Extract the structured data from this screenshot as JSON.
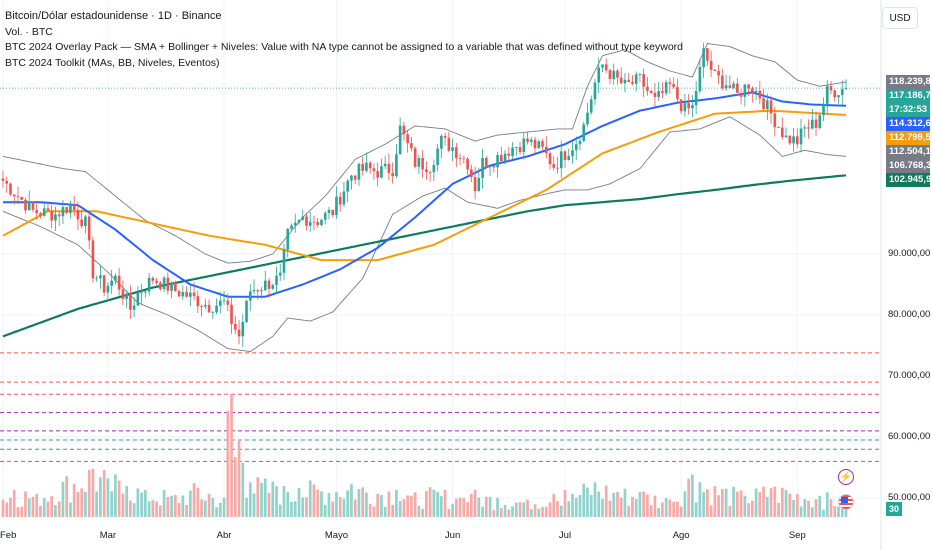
{
  "header": {
    "title": "Bitcoin/Dólar estadounidense · 1D · Binance",
    "volume_label": "Vol. · BTC",
    "indicator_overlay": "BTC 2024 Overlay Pack — SMA + Bollinger + Niveles: Value with NA type cannot be assigned to a variable that was defined without type keyword",
    "indicator_toolkit": "BTC 2024 Toolkit (MAs, BB, Niveles, Eventos)",
    "currency_button": "USD"
  },
  "price_badges": [
    {
      "id": "bb-upper",
      "text": "118.239,82",
      "value": 118239.82,
      "color": "#787b86"
    },
    {
      "id": "last-price",
      "text": "117.186,76",
      "value": 117186.76,
      "color": "#26a69a"
    },
    {
      "id": "countdown",
      "text": "17:32:53",
      "value": 117186.76,
      "color": "#26a69a"
    },
    {
      "id": "sma50",
      "text": "114.312,64",
      "value": 114312.64,
      "color": "#2962ff"
    },
    {
      "id": "sma100",
      "text": "112.799,50",
      "value": 112799.5,
      "color": "#f59d0b"
    },
    {
      "id": "bb-basis",
      "text": "112.504,10",
      "value": 112504.1,
      "color": "#787b86"
    },
    {
      "id": "bb-lower",
      "text": "106.768,39",
      "value": 106768.39,
      "color": "#787b86"
    },
    {
      "id": "sma200",
      "text": "102.945,98",
      "value": 102945.98,
      "color": "#0f7a5c"
    }
  ],
  "volume_badge": "30",
  "icons": {
    "flash": "flash-icon",
    "flag": "us-flag-icon"
  },
  "chart_data": {
    "type": "candlestick",
    "y_axis": {
      "ticks": [
        {
          "value": 90000,
          "label": "90.000,00"
        },
        {
          "value": 80000,
          "label": "80.000,00"
        },
        {
          "value": 70000,
          "label": "70.000,00"
        },
        {
          "value": 60000,
          "label": "60.000,00"
        },
        {
          "value": 50000,
          "label": "50.000,00"
        }
      ]
    },
    "x_axis": {
      "ticks": [
        {
          "label": "Feb",
          "bar": 0
        },
        {
          "label": "Mar",
          "bar": 28
        },
        {
          "label": "Abr",
          "bar": 59
        },
        {
          "label": "Mayo",
          "bar": 89
        },
        {
          "label": "Jun",
          "bar": 120
        },
        {
          "label": "Jul",
          "bar": 150
        },
        {
          "label": "Ago",
          "bar": 181
        },
        {
          "label": "Sep",
          "bar": 212
        }
      ]
    },
    "ylim": [
      45000,
      125000
    ],
    "bar_count": 226,
    "colors": {
      "up": "#26a69a",
      "down": "#ef5350",
      "sma50": "#2962ff",
      "sma100": "#f59d0b",
      "sma200": "#0f7a5c",
      "bb": "#787b86"
    },
    "horizontal_levels": [
      {
        "value": 73800,
        "color": "#ef5350",
        "style": "dashed"
      },
      {
        "value": 69000,
        "color": "#ef5350",
        "style": "dashed"
      },
      {
        "value": 67000,
        "color": "#ef5350",
        "style": "dashed"
      },
      {
        "value": 64000,
        "color": "#9c27b0",
        "style": "dashed"
      },
      {
        "value": 61000,
        "color": "#9c27b0",
        "style": "dashed"
      },
      {
        "value": 59500,
        "color": "#26a69a",
        "style": "dashed"
      },
      {
        "value": 58000,
        "color": "#26a69a",
        "style": "dashed"
      },
      {
        "value": 56000,
        "color": "#787b86",
        "style": "dashed"
      }
    ],
    "close_anchors": [
      [
        0,
        102000
      ],
      [
        8,
        97000
      ],
      [
        14,
        96500
      ],
      [
        18,
        98000
      ],
      [
        22,
        95000
      ],
      [
        24,
        87000
      ],
      [
        27,
        84500
      ],
      [
        30,
        86000
      ],
      [
        34,
        81000
      ],
      [
        36,
        83500
      ],
      [
        40,
        86000
      ],
      [
        46,
        84000
      ],
      [
        50,
        83000
      ],
      [
        55,
        81500
      ],
      [
        59,
        82000
      ],
      [
        61,
        79000
      ],
      [
        63,
        76500
      ],
      [
        66,
        84000
      ],
      [
        70,
        85000
      ],
      [
        74,
        86000
      ],
      [
        76,
        93000
      ],
      [
        80,
        96000
      ],
      [
        84,
        95500
      ],
      [
        88,
        97000
      ],
      [
        93,
        103000
      ],
      [
        97,
        104000
      ],
      [
        100,
        103500
      ],
      [
        104,
        104000
      ],
      [
        106,
        110500
      ],
      [
        110,
        105000
      ],
      [
        114,
        104500
      ],
      [
        117,
        108500
      ],
      [
        120,
        107500
      ],
      [
        124,
        105000
      ],
      [
        126,
        101000
      ],
      [
        128,
        105000
      ],
      [
        131,
        105500
      ],
      [
        136,
        107500
      ],
      [
        140,
        108500
      ],
      [
        144,
        107000
      ],
      [
        147,
        104500
      ],
      [
        150,
        106500
      ],
      [
        153,
        108500
      ],
      [
        155,
        111000
      ],
      [
        158,
        118000
      ],
      [
        160,
        121000
      ],
      [
        163,
        119000
      ],
      [
        166,
        117500
      ],
      [
        170,
        118500
      ],
      [
        174,
        115000
      ],
      [
        178,
        117500
      ],
      [
        182,
        113500
      ],
      [
        184,
        114000
      ],
      [
        187,
        123000
      ],
      [
        190,
        119000
      ],
      [
        193,
        118000
      ],
      [
        196,
        116000
      ],
      [
        199,
        118000
      ],
      [
        202,
        116000
      ],
      [
        205,
        113000
      ],
      [
        209,
        109000
      ],
      [
        212,
        108500
      ],
      [
        214,
        110500
      ],
      [
        217,
        111500
      ],
      [
        220,
        116500
      ],
      [
        225,
        117200
      ]
    ],
    "sma50_anchors": [
      [
        0,
        98500
      ],
      [
        10,
        98500
      ],
      [
        20,
        98000
      ],
      [
        30,
        94000
      ],
      [
        40,
        89000
      ],
      [
        50,
        85000
      ],
      [
        60,
        83000
      ],
      [
        70,
        83000
      ],
      [
        80,
        85000
      ],
      [
        90,
        87500
      ],
      [
        100,
        91000
      ],
      [
        110,
        96000
      ],
      [
        120,
        101500
      ],
      [
        130,
        104500
      ],
      [
        140,
        106000
      ],
      [
        150,
        108000
      ],
      [
        160,
        111000
      ],
      [
        170,
        113500
      ],
      [
        180,
        114800
      ],
      [
        190,
        115500
      ],
      [
        200,
        116500
      ],
      [
        208,
        115000
      ],
      [
        216,
        114500
      ],
      [
        225,
        114300
      ]
    ],
    "sma100_anchors": [
      [
        0,
        93000
      ],
      [
        12,
        97000
      ],
      [
        25,
        97000
      ],
      [
        40,
        95000
      ],
      [
        55,
        93000
      ],
      [
        70,
        91500
      ],
      [
        85,
        89000
      ],
      [
        100,
        89000
      ],
      [
        115,
        91500
      ],
      [
        130,
        96000
      ],
      [
        145,
        100500
      ],
      [
        160,
        106500
      ],
      [
        175,
        110000
      ],
      [
        190,
        113000
      ],
      [
        205,
        113500
      ],
      [
        225,
        112800
      ]
    ],
    "sma200_anchors": [
      [
        0,
        76500
      ],
      [
        20,
        81000
      ],
      [
        40,
        84500
      ],
      [
        60,
        87000
      ],
      [
        80,
        89500
      ],
      [
        100,
        92000
      ],
      [
        120,
        94500
      ],
      [
        140,
        97000
      ],
      [
        150,
        98000
      ],
      [
        160,
        98500
      ],
      [
        170,
        99000
      ],
      [
        180,
        99800
      ],
      [
        190,
        100500
      ],
      [
        200,
        101300
      ],
      [
        210,
        102000
      ],
      [
        225,
        102900
      ]
    ],
    "bb_upper_anchors": [
      [
        0,
        106000
      ],
      [
        8,
        105000
      ],
      [
        16,
        104000
      ],
      [
        22,
        103500
      ],
      [
        26,
        101500
      ],
      [
        30,
        99500
      ],
      [
        38,
        95500
      ],
      [
        46,
        93000
      ],
      [
        54,
        90000
      ],
      [
        60,
        88500
      ],
      [
        66,
        88800
      ],
      [
        72,
        90000
      ],
      [
        80,
        96000
      ],
      [
        86,
        99500
      ],
      [
        94,
        105500
      ],
      [
        102,
        108000
      ],
      [
        110,
        111000
      ],
      [
        118,
        110500
      ],
      [
        126,
        108500
      ],
      [
        132,
        109500
      ],
      [
        140,
        110000
      ],
      [
        148,
        110500
      ],
      [
        152,
        110500
      ],
      [
        156,
        117500
      ],
      [
        160,
        122500
      ],
      [
        166,
        123500
      ],
      [
        172,
        121500
      ],
      [
        178,
        120000
      ],
      [
        184,
        119000
      ],
      [
        188,
        124500
      ],
      [
        194,
        124000
      ],
      [
        200,
        122500
      ],
      [
        206,
        121500
      ],
      [
        212,
        118500
      ],
      [
        218,
        117500
      ],
      [
        225,
        118200
      ]
    ],
    "bb_basis_anchors": [
      [
        0,
        101500
      ],
      [
        10,
        101000
      ],
      [
        20,
        99000
      ],
      [
        30,
        94000
      ],
      [
        40,
        89500
      ],
      [
        50,
        85500
      ],
      [
        60,
        83000
      ],
      [
        70,
        82700
      ],
      [
        80,
        86000
      ],
      [
        90,
        94000
      ],
      [
        100,
        99000
      ],
      [
        110,
        104000
      ],
      [
        120,
        105000
      ],
      [
        130,
        104500
      ],
      [
        140,
        105000
      ],
      [
        150,
        106500
      ],
      [
        160,
        111500
      ],
      [
        170,
        115500
      ],
      [
        180,
        117500
      ],
      [
        190,
        118500
      ],
      [
        200,
        117000
      ],
      [
        210,
        113500
      ],
      [
        220,
        112500
      ],
      [
        225,
        112500
      ]
    ],
    "bb_lower_anchors": [
      [
        0,
        97000
      ],
      [
        10,
        94500
      ],
      [
        20,
        91500
      ],
      [
        28,
        87000
      ],
      [
        36,
        82000
      ],
      [
        44,
        80000
      ],
      [
        52,
        77500
      ],
      [
        60,
        74500
      ],
      [
        66,
        74000
      ],
      [
        72,
        76500
      ],
      [
        76,
        79500
      ],
      [
        82,
        79000
      ],
      [
        88,
        80500
      ],
      [
        96,
        86000
      ],
      [
        104,
        96500
      ],
      [
        112,
        99500
      ],
      [
        118,
        100800
      ],
      [
        124,
        98500
      ],
      [
        132,
        97500
      ],
      [
        138,
        98800
      ],
      [
        146,
        100000
      ],
      [
        150,
        100500
      ],
      [
        156,
        100500
      ],
      [
        162,
        101500
      ],
      [
        170,
        104000
      ],
      [
        178,
        110000
      ],
      [
        186,
        110500
      ],
      [
        194,
        112500
      ],
      [
        202,
        109500
      ],
      [
        208,
        106000
      ],
      [
        214,
        107000
      ],
      [
        220,
        106300
      ],
      [
        225,
        106000
      ]
    ],
    "volume_spike_anchors": [
      [
        0,
        9
      ],
      [
        3,
        14
      ],
      [
        9,
        12
      ],
      [
        24,
        25
      ],
      [
        28,
        20
      ],
      [
        33,
        16
      ],
      [
        38,
        14
      ],
      [
        45,
        11
      ],
      [
        52,
        15
      ],
      [
        55,
        12
      ],
      [
        59,
        10
      ],
      [
        60,
        55
      ],
      [
        61,
        64
      ],
      [
        62,
        31
      ],
      [
        63,
        40
      ],
      [
        64,
        28
      ],
      [
        66,
        18
      ],
      [
        73,
        16
      ],
      [
        76,
        13
      ],
      [
        79,
        15
      ],
      [
        93,
        17
      ],
      [
        105,
        14
      ],
      [
        109,
        11
      ],
      [
        116,
        13
      ],
      [
        122,
        10
      ],
      [
        125,
        12
      ],
      [
        132,
        10
      ],
      [
        140,
        9
      ],
      [
        147,
        12
      ],
      [
        150,
        14
      ],
      [
        152,
        12
      ],
      [
        158,
        18
      ],
      [
        164,
        13
      ],
      [
        170,
        13
      ],
      [
        178,
        9
      ],
      [
        184,
        22
      ],
      [
        186,
        18
      ],
      [
        190,
        16
      ],
      [
        198,
        11
      ],
      [
        205,
        15
      ],
      [
        209,
        14
      ],
      [
        218,
        11
      ],
      [
        225,
        9
      ]
    ],
    "volume_scale_max": 70
  }
}
